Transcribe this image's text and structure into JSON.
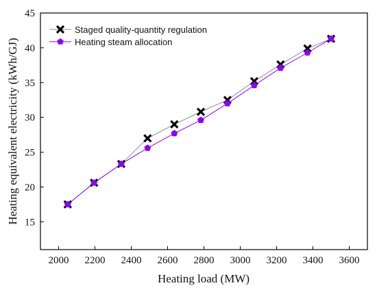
{
  "chart_data": {
    "type": "line",
    "xlabel": "Heating load (MW)",
    "ylabel": "Heating equivalent electricity (kWh/GJ)",
    "xlim": [
      1900,
      3700
    ],
    "ylim": [
      11,
      45
    ],
    "xticks": [
      2000,
      2200,
      2400,
      2600,
      2800,
      3000,
      3200,
      3400,
      3600
    ],
    "yticks": [
      15,
      20,
      25,
      30,
      35,
      40,
      45
    ],
    "grid": false,
    "legend_position": "top-left",
    "series": [
      {
        "name": "Staged quality-quantity regulation",
        "marker": "x",
        "color": "#000000",
        "line_color": "#8c8c8c",
        "x": [
          2050,
          2195,
          2345,
          2490,
          2637,
          2783,
          2930,
          3077,
          3222,
          3370,
          3500
        ],
        "y": [
          17.5,
          20.6,
          23.3,
          27.0,
          29.0,
          30.8,
          32.5,
          35.2,
          37.6,
          39.9,
          41.3
        ]
      },
      {
        "name": "Heating steam allocation",
        "marker": "pentagon",
        "color": "#8b00ff",
        "line_color": "#8b00ff",
        "x": [
          2050,
          2195,
          2345,
          2490,
          2637,
          2783,
          2930,
          3077,
          3222,
          3370,
          3500
        ],
        "y": [
          17.5,
          20.6,
          23.3,
          25.6,
          27.7,
          29.6,
          32.0,
          34.6,
          37.1,
          39.3,
          41.3
        ]
      }
    ]
  }
}
